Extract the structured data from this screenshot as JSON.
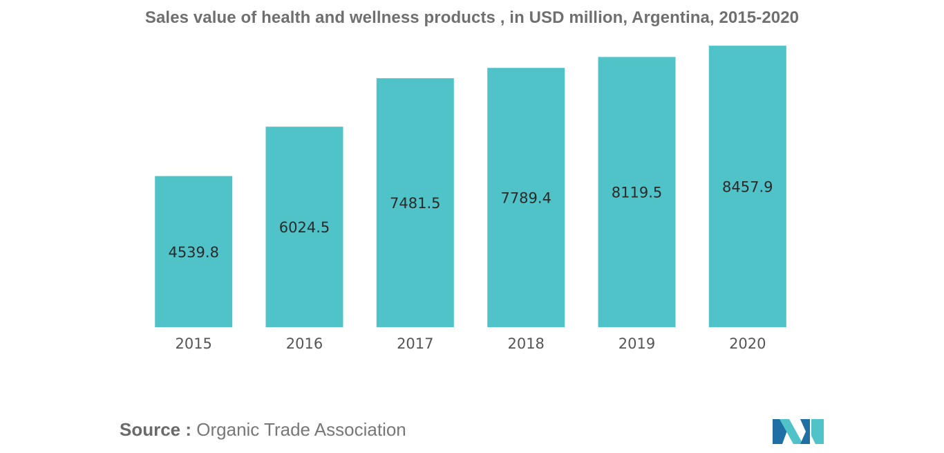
{
  "chart_data": {
    "type": "bar",
    "title": "Sales value of health and wellness products , in USD million, Argentina, 2015-2020",
    "categories": [
      "2015",
      "2016",
      "2017",
      "2018",
      "2019",
      "2020"
    ],
    "values": [
      4539.8,
      6024.5,
      7481.5,
      7789.4,
      8119.5,
      8457.9
    ],
    "value_labels": [
      "4539.8",
      "6024.5",
      "7481.5",
      "7789.4",
      "8119.5",
      "8457.9"
    ],
    "xlabel": "",
    "ylabel": "",
    "ylim": [
      0,
      9000
    ],
    "grid": false,
    "legend": "none",
    "bar_color": "#50c3c9"
  },
  "source": {
    "label": "Source :",
    "text": "Organic Trade Association"
  },
  "logo": {
    "icon": "mordor-intelligence-logo",
    "colors": [
      "#1f6fa5",
      "#50c3c9"
    ]
  }
}
